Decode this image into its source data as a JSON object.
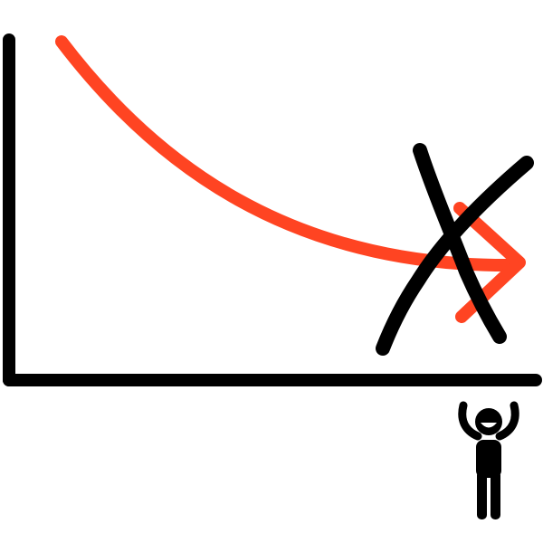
{
  "diagram": {
    "colors": {
      "background": "#ffffff",
      "axes": "#000000",
      "curve": "#ff4422",
      "cross": "#000000",
      "figure": "#000000",
      "face": "#ffffff"
    },
    "icons": {
      "curve": "downward-curved-arrow-icon",
      "cross": "x-mark-icon",
      "figure": "cheering-person-icon"
    }
  }
}
